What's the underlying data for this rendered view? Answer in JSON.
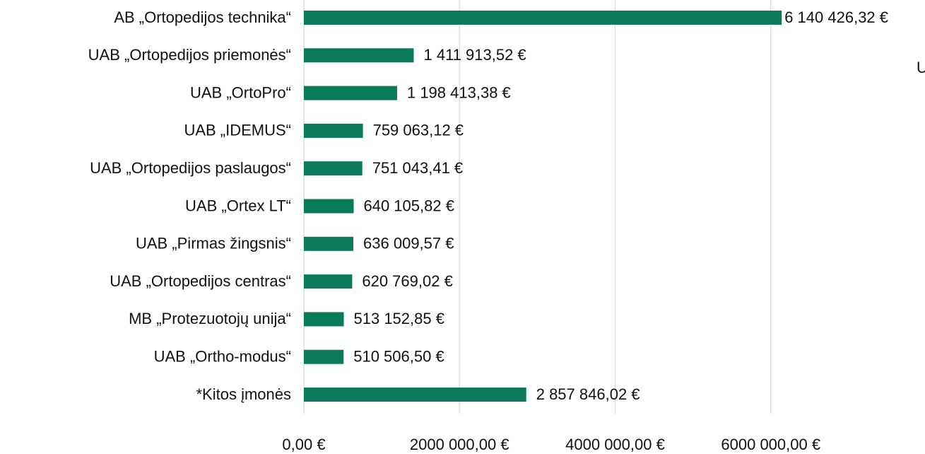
{
  "chart_data": {
    "type": "bar",
    "orientation": "horizontal",
    "categories": [
      "AB „Ortopedijos technika“",
      "UAB „Ortopedijos priemonės“",
      "UAB „OrtoPro“",
      "UAB „IDEMUS“",
      "UAB „Ortopedijos paslaugos“",
      "UAB „Ortex LT“",
      "UAB „Pirmas žingsnis“",
      "UAB „Ortopedijos centras“",
      "MB „Protezuotojų unija“",
      "UAB „Ortho-modus“",
      "*Kitos įmonės"
    ],
    "values": [
      6140426.32,
      1411913.52,
      1198413.38,
      759063.12,
      751043.41,
      640105.82,
      636009.57,
      620769.02,
      513152.85,
      510506.5,
      2857846.02
    ],
    "value_labels": [
      "6 140 426,32 €",
      "1 411 913,52 €",
      "1 198 413,38 €",
      "759 063,12 €",
      "751 043,41 €",
      "640 105,82 €",
      "636 009,57 €",
      "620 769,02 €",
      "513 152,85 €",
      "510 506,50 €",
      "2 857 846,02 €"
    ],
    "color": "#0b7a5b",
    "xlim": [
      0,
      8000000
    ],
    "xticks": [
      {
        "value": 0,
        "label": "0,00 €"
      },
      {
        "value": 2000000,
        "label": "2000 000,00 €"
      },
      {
        "value": 4000000,
        "label": "4000 000,00 €"
      },
      {
        "value": 6000000,
        "label": "6000 000,00 €"
      }
    ],
    "grid": true,
    "note": "U"
  }
}
